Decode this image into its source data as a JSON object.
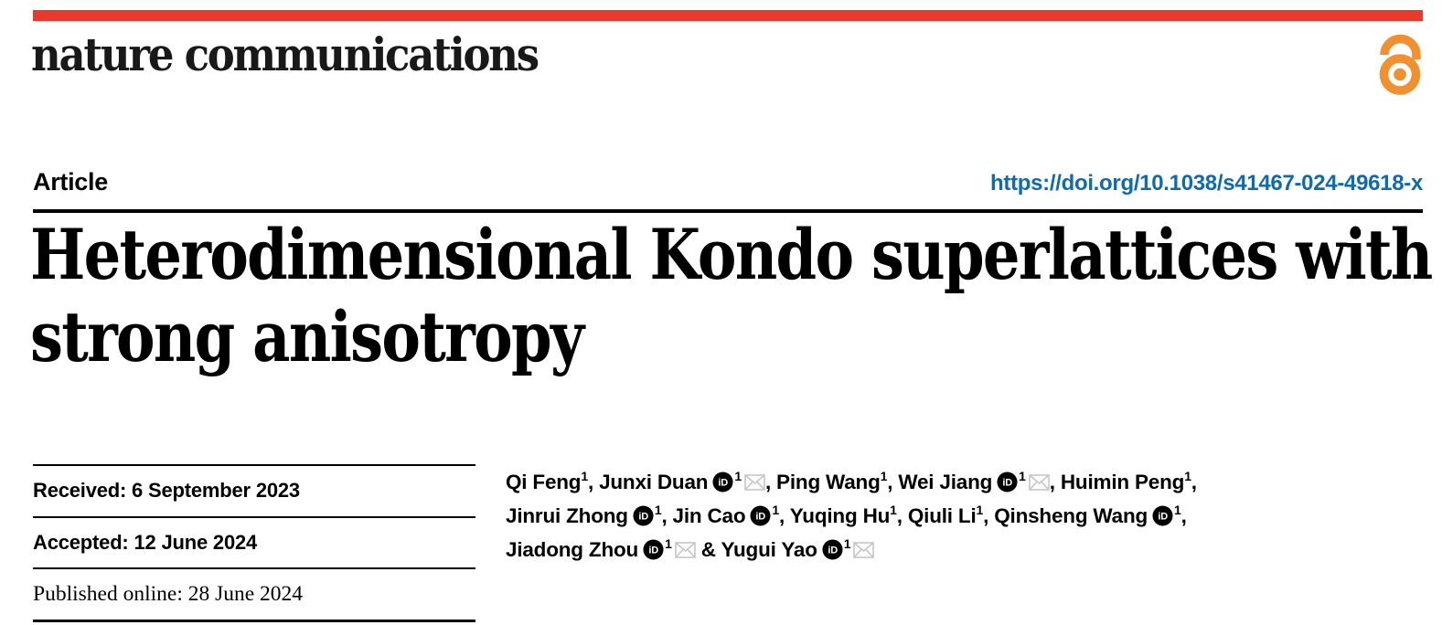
{
  "brand": {
    "masthead": "nature communications",
    "bar_color": "#e8392c",
    "oa_color": "#f0902f"
  },
  "icons": {
    "open_access": "open-access-lock-icon",
    "orcid": "orcid-id-icon",
    "email": "email-envelope-icon"
  },
  "header": {
    "article_label": "Article",
    "doi": "https://doi.org/10.1038/s41467-024-49618-x",
    "doi_color": "#0d6bae"
  },
  "title": {
    "line1": "Heterodimensional Kondo superlattices with",
    "line2": "strong anisotropy"
  },
  "dates": [
    {
      "label": "Received",
      "value": "6 September 2023"
    },
    {
      "label": "Accepted",
      "value": "12 June 2024"
    },
    {
      "label": "Published online",
      "value": "28 June 2024"
    }
  ],
  "authors": {
    "affiliation_mark": "1",
    "lines": [
      [
        {
          "name": "Qi Feng",
          "orcid": false,
          "sup": "1",
          "mail": false,
          "sep": ", "
        },
        {
          "name": "Junxi Duan",
          "orcid": true,
          "sup": "1",
          "mail": true,
          "sep": ", "
        },
        {
          "name": "Ping Wang",
          "orcid": false,
          "sup": "1",
          "mail": false,
          "sep": ", "
        },
        {
          "name": "Wei Jiang",
          "orcid": true,
          "sup": "1",
          "mail": true,
          "sep": ", "
        },
        {
          "name": "Huimin Peng",
          "orcid": false,
          "sup": "1",
          "mail": false,
          "sep": ","
        }
      ],
      [
        {
          "name": "Jinrui Zhong",
          "orcid": true,
          "sup": "1",
          "mail": false,
          "sep": ", "
        },
        {
          "name": "Jin Cao",
          "orcid": true,
          "sup": "1",
          "mail": false,
          "sep": ", "
        },
        {
          "name": "Yuqing Hu",
          "orcid": false,
          "sup": "1",
          "mail": false,
          "sep": ", "
        },
        {
          "name": "Qiuli Li",
          "orcid": false,
          "sup": "1",
          "mail": false,
          "sep": ", "
        },
        {
          "name": "Qinsheng Wang",
          "orcid": true,
          "sup": "1",
          "mail": false,
          "sep": ","
        }
      ],
      [
        {
          "name": "Jiadong Zhou",
          "orcid": true,
          "sup": "1",
          "mail": true,
          "sep": " & "
        },
        {
          "name": "Yugui Yao",
          "orcid": true,
          "sup": "1",
          "mail": true,
          "sep": ""
        }
      ]
    ]
  }
}
